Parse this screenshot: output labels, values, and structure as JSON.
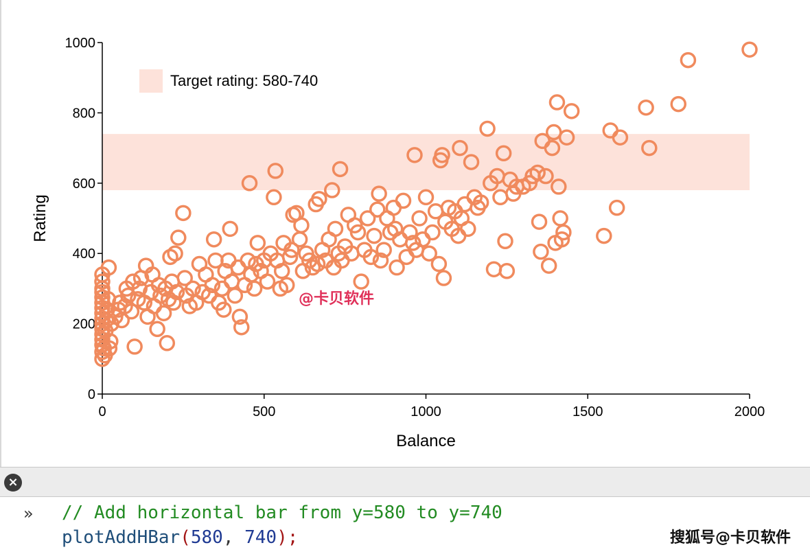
{
  "chart_data": {
    "type": "scatter",
    "title": "",
    "xlabel": "Balance",
    "ylabel": "Rating",
    "xlim": [
      0,
      2000
    ],
    "ylim": [
      0,
      1000
    ],
    "xticks": [
      0,
      500,
      1000,
      1500,
      2000
    ],
    "yticks": [
      0,
      200,
      400,
      600,
      800,
      1000
    ],
    "grid": false,
    "marker_color": "#f08a5d",
    "band": {
      "label": "Target rating: 580-740",
      "y0": 580,
      "y1": 740,
      "color": "#fde2da"
    },
    "legend": {
      "placement": "top-left",
      "entries": [
        "Target rating: 580-740"
      ]
    },
    "annotation": "@卡贝软件",
    "points": [
      [
        0,
        100
      ],
      [
        0,
        120
      ],
      [
        0,
        140
      ],
      [
        0,
        155
      ],
      [
        0,
        170
      ],
      [
        0,
        185
      ],
      [
        0,
        200
      ],
      [
        0,
        215
      ],
      [
        0,
        230
      ],
      [
        0,
        245
      ],
      [
        0,
        260
      ],
      [
        0,
        275
      ],
      [
        0,
        290
      ],
      [
        0,
        300
      ],
      [
        0,
        320
      ],
      [
        0,
        340
      ],
      [
        5,
        130
      ],
      [
        8,
        110
      ],
      [
        10,
        180
      ],
      [
        12,
        210
      ],
      [
        15,
        240
      ],
      [
        18,
        270
      ],
      [
        20,
        360
      ],
      [
        22,
        130
      ],
      [
        25,
        150
      ],
      [
        28,
        200
      ],
      [
        40,
        220
      ],
      [
        50,
        240
      ],
      [
        55,
        260
      ],
      [
        60,
        210
      ],
      [
        70,
        250
      ],
      [
        75,
        300
      ],
      [
        80,
        280
      ],
      [
        90,
        235
      ],
      [
        95,
        320
      ],
      [
        100,
        135
      ],
      [
        110,
        270
      ],
      [
        115,
        300
      ],
      [
        120,
        330
      ],
      [
        130,
        260
      ],
      [
        135,
        365
      ],
      [
        140,
        220
      ],
      [
        150,
        290
      ],
      [
        155,
        340
      ],
      [
        160,
        250
      ],
      [
        170,
        185
      ],
      [
        175,
        310
      ],
      [
        180,
        280
      ],
      [
        190,
        230
      ],
      [
        195,
        300
      ],
      [
        200,
        145
      ],
      [
        205,
        270
      ],
      [
        210,
        390
      ],
      [
        215,
        320
      ],
      [
        220,
        260
      ],
      [
        225,
        400
      ],
      [
        230,
        290
      ],
      [
        235,
        445
      ],
      [
        250,
        515
      ],
      [
        255,
        330
      ],
      [
        260,
        280
      ],
      [
        270,
        250
      ],
      [
        280,
        300
      ],
      [
        290,
        260
      ],
      [
        300,
        370
      ],
      [
        310,
        290
      ],
      [
        320,
        340
      ],
      [
        330,
        280
      ],
      [
        340,
        310
      ],
      [
        345,
        440
      ],
      [
        350,
        380
      ],
      [
        360,
        260
      ],
      [
        370,
        300
      ],
      [
        375,
        240
      ],
      [
        380,
        350
      ],
      [
        390,
        380
      ],
      [
        395,
        470
      ],
      [
        400,
        320
      ],
      [
        410,
        280
      ],
      [
        420,
        360
      ],
      [
        425,
        220
      ],
      [
        430,
        190
      ],
      [
        440,
        310
      ],
      [
        450,
        380
      ],
      [
        455,
        600
      ],
      [
        460,
        340
      ],
      [
        470,
        300
      ],
      [
        475,
        370
      ],
      [
        480,
        430
      ],
      [
        490,
        350
      ],
      [
        500,
        380
      ],
      [
        510,
        320
      ],
      [
        520,
        400
      ],
      [
        530,
        560
      ],
      [
        535,
        635
      ],
      [
        540,
        380
      ],
      [
        550,
        300
      ],
      [
        555,
        350
      ],
      [
        560,
        430
      ],
      [
        570,
        310
      ],
      [
        580,
        390
      ],
      [
        585,
        410
      ],
      [
        590,
        510
      ],
      [
        600,
        515
      ],
      [
        610,
        440
      ],
      [
        615,
        480
      ],
      [
        620,
        350
      ],
      [
        630,
        400
      ],
      [
        640,
        380
      ],
      [
        650,
        360
      ],
      [
        660,
        540
      ],
      [
        665,
        370
      ],
      [
        670,
        555
      ],
      [
        680,
        410
      ],
      [
        690,
        380
      ],
      [
        700,
        440
      ],
      [
        710,
        580
      ],
      [
        715,
        360
      ],
      [
        720,
        470
      ],
      [
        730,
        400
      ],
      [
        735,
        640
      ],
      [
        740,
        380
      ],
      [
        750,
        420
      ],
      [
        760,
        510
      ],
      [
        770,
        400
      ],
      [
        780,
        480
      ],
      [
        790,
        460
      ],
      [
        800,
        320
      ],
      [
        810,
        410
      ],
      [
        820,
        500
      ],
      [
        830,
        390
      ],
      [
        840,
        450
      ],
      [
        850,
        525
      ],
      [
        855,
        570
      ],
      [
        860,
        380
      ],
      [
        870,
        410
      ],
      [
        880,
        500
      ],
      [
        890,
        460
      ],
      [
        900,
        530
      ],
      [
        905,
        470
      ],
      [
        910,
        360
      ],
      [
        920,
        440
      ],
      [
        930,
        550
      ],
      [
        940,
        390
      ],
      [
        950,
        460
      ],
      [
        960,
        430
      ],
      [
        965,
        680
      ],
      [
        970,
        410
      ],
      [
        980,
        500
      ],
      [
        990,
        440
      ],
      [
        1000,
        560
      ],
      [
        1010,
        400
      ],
      [
        1020,
        460
      ],
      [
        1030,
        520
      ],
      [
        1040,
        370
      ],
      [
        1045,
        665
      ],
      [
        1050,
        680
      ],
      [
        1055,
        330
      ],
      [
        1060,
        490
      ],
      [
        1070,
        530
      ],
      [
        1080,
        470
      ],
      [
        1090,
        520
      ],
      [
        1100,
        450
      ],
      [
        1105,
        700
      ],
      [
        1110,
        500
      ],
      [
        1120,
        540
      ],
      [
        1130,
        470
      ],
      [
        1140,
        660
      ],
      [
        1150,
        560
      ],
      [
        1160,
        530
      ],
      [
        1170,
        545
      ],
      [
        1190,
        755
      ],
      [
        1200,
        600
      ],
      [
        1210,
        355
      ],
      [
        1220,
        620
      ],
      [
        1230,
        560
      ],
      [
        1240,
        685
      ],
      [
        1245,
        435
      ],
      [
        1250,
        350
      ],
      [
        1260,
        610
      ],
      [
        1270,
        570
      ],
      [
        1280,
        590
      ],
      [
        1300,
        590
      ],
      [
        1320,
        600
      ],
      [
        1330,
        620
      ],
      [
        1345,
        630
      ],
      [
        1350,
        490
      ],
      [
        1355,
        405
      ],
      [
        1360,
        720
      ],
      [
        1370,
        620
      ],
      [
        1380,
        365
      ],
      [
        1390,
        700
      ],
      [
        1395,
        745
      ],
      [
        1400,
        430
      ],
      [
        1405,
        830
      ],
      [
        1410,
        590
      ],
      [
        1415,
        500
      ],
      [
        1420,
        440
      ],
      [
        1425,
        460
      ],
      [
        1435,
        730
      ],
      [
        1450,
        805
      ],
      [
        1550,
        450
      ],
      [
        1570,
        750
      ],
      [
        1590,
        530
      ],
      [
        1600,
        730
      ],
      [
        1680,
        815
      ],
      [
        1690,
        700
      ],
      [
        1780,
        825
      ],
      [
        1810,
        950
      ],
      [
        2000,
        980
      ]
    ]
  },
  "console": {
    "prompt": "»",
    "comment": "// Add horizontal bar from y=580 to y=740",
    "call_fn": "plotAddHBar",
    "call_open": "(",
    "call_arg1": "580",
    "call_sep": ", ",
    "call_arg2": "740",
    "call_close": ");"
  },
  "toolbar": {
    "close_icon": "close-icon"
  },
  "watermark": "搜狐号@卡贝软件"
}
